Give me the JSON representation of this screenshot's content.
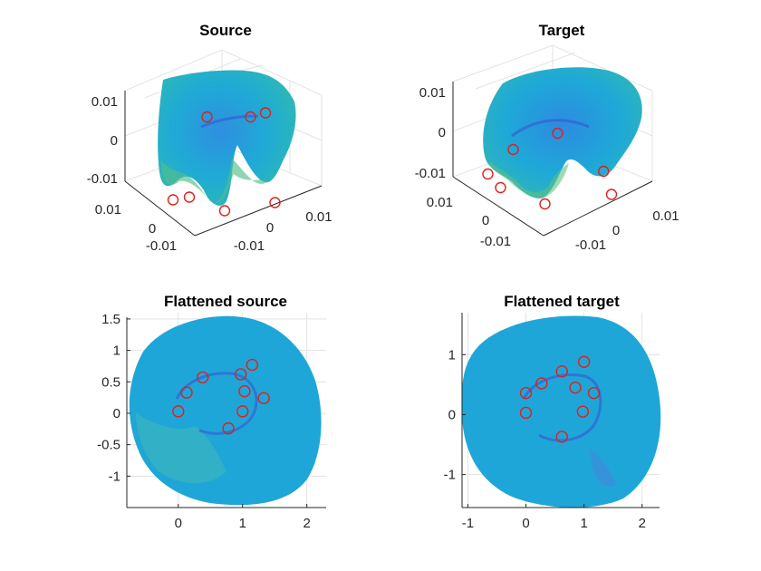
{
  "chart_data": [
    {
      "type": "surface3d",
      "title": "Source",
      "z_ticks": [
        "0.01",
        "0",
        "-0.01"
      ],
      "y_ticks": [
        "0.01",
        "0",
        "-0.01"
      ],
      "x_ticks": [
        "-0.01",
        "0",
        "0.01"
      ],
      "grid": true,
      "colormap": "parula",
      "marker_count": 7,
      "markers": [
        {
          "u": 0.35,
          "v": 0.34
        },
        {
          "u": 0.78,
          "v": 0.31
        },
        {
          "u": 0.67,
          "v": 0.34
        },
        {
          "u": 0.1,
          "v": 0.95
        },
        {
          "u": 0.48,
          "v": 1.03
        },
        {
          "u": 0.85,
          "v": 0.97
        },
        {
          "u": 0.22,
          "v": 0.93
        }
      ]
    },
    {
      "type": "surface3d",
      "title": "Target",
      "z_ticks": [
        "0.01",
        "0",
        "-0.01"
      ],
      "y_ticks": [
        "0.01",
        "0",
        "-0.01"
      ],
      "x_ticks": [
        "-0.01",
        "0",
        "0.01"
      ],
      "grid": true,
      "colormap": "parula",
      "marker_count": 7,
      "markers": [
        {
          "u": 0.18,
          "v": 0.62
        },
        {
          "u": 0.46,
          "v": 0.5
        },
        {
          "u": 0.75,
          "v": 0.78
        },
        {
          "u": 0.02,
          "v": 0.8
        },
        {
          "u": 0.1,
          "v": 0.9
        },
        {
          "u": 0.38,
          "v": 1.02
        },
        {
          "u": 0.8,
          "v": 0.95
        }
      ]
    },
    {
      "type": "scatter",
      "title": "Flattened source",
      "xlim": [
        -0.8,
        2.3
      ],
      "ylim": [
        -1.5,
        1.6
      ],
      "x_ticks": [
        "0",
        "1",
        "2"
      ],
      "y_ticks": [
        "1.5",
        "1",
        "0.5",
        "0",
        "-0.5",
        "-1"
      ],
      "grid": true,
      "colormap": "parula",
      "markers": [
        [
          0.38,
          0.57
        ],
        [
          0.97,
          0.62
        ],
        [
          1.15,
          0.77
        ],
        [
          0.13,
          0.33
        ],
        [
          1.03,
          0.35
        ],
        [
          1.33,
          0.24
        ],
        [
          0.0,
          0.03
        ],
        [
          1.0,
          0.03
        ],
        [
          0.78,
          -0.24
        ]
      ]
    },
    {
      "type": "scatter",
      "title": "Flattened target",
      "xlim": [
        -1.1,
        2.3
      ],
      "ylim": [
        -1.55,
        1.7
      ],
      "x_ticks": [
        "-1",
        "0",
        "1",
        "2"
      ],
      "y_ticks": [
        "1",
        "0",
        "-1"
      ],
      "grid": true,
      "colormap": "parula",
      "markers": [
        [
          0.27,
          0.52
        ],
        [
          0.62,
          0.72
        ],
        [
          1.0,
          0.88
        ],
        [
          0.0,
          0.36
        ],
        [
          0.85,
          0.45
        ],
        [
          1.17,
          0.36
        ],
        [
          0.0,
          0.03
        ],
        [
          0.98,
          0.05
        ],
        [
          0.62,
          -0.37
        ]
      ]
    }
  ]
}
